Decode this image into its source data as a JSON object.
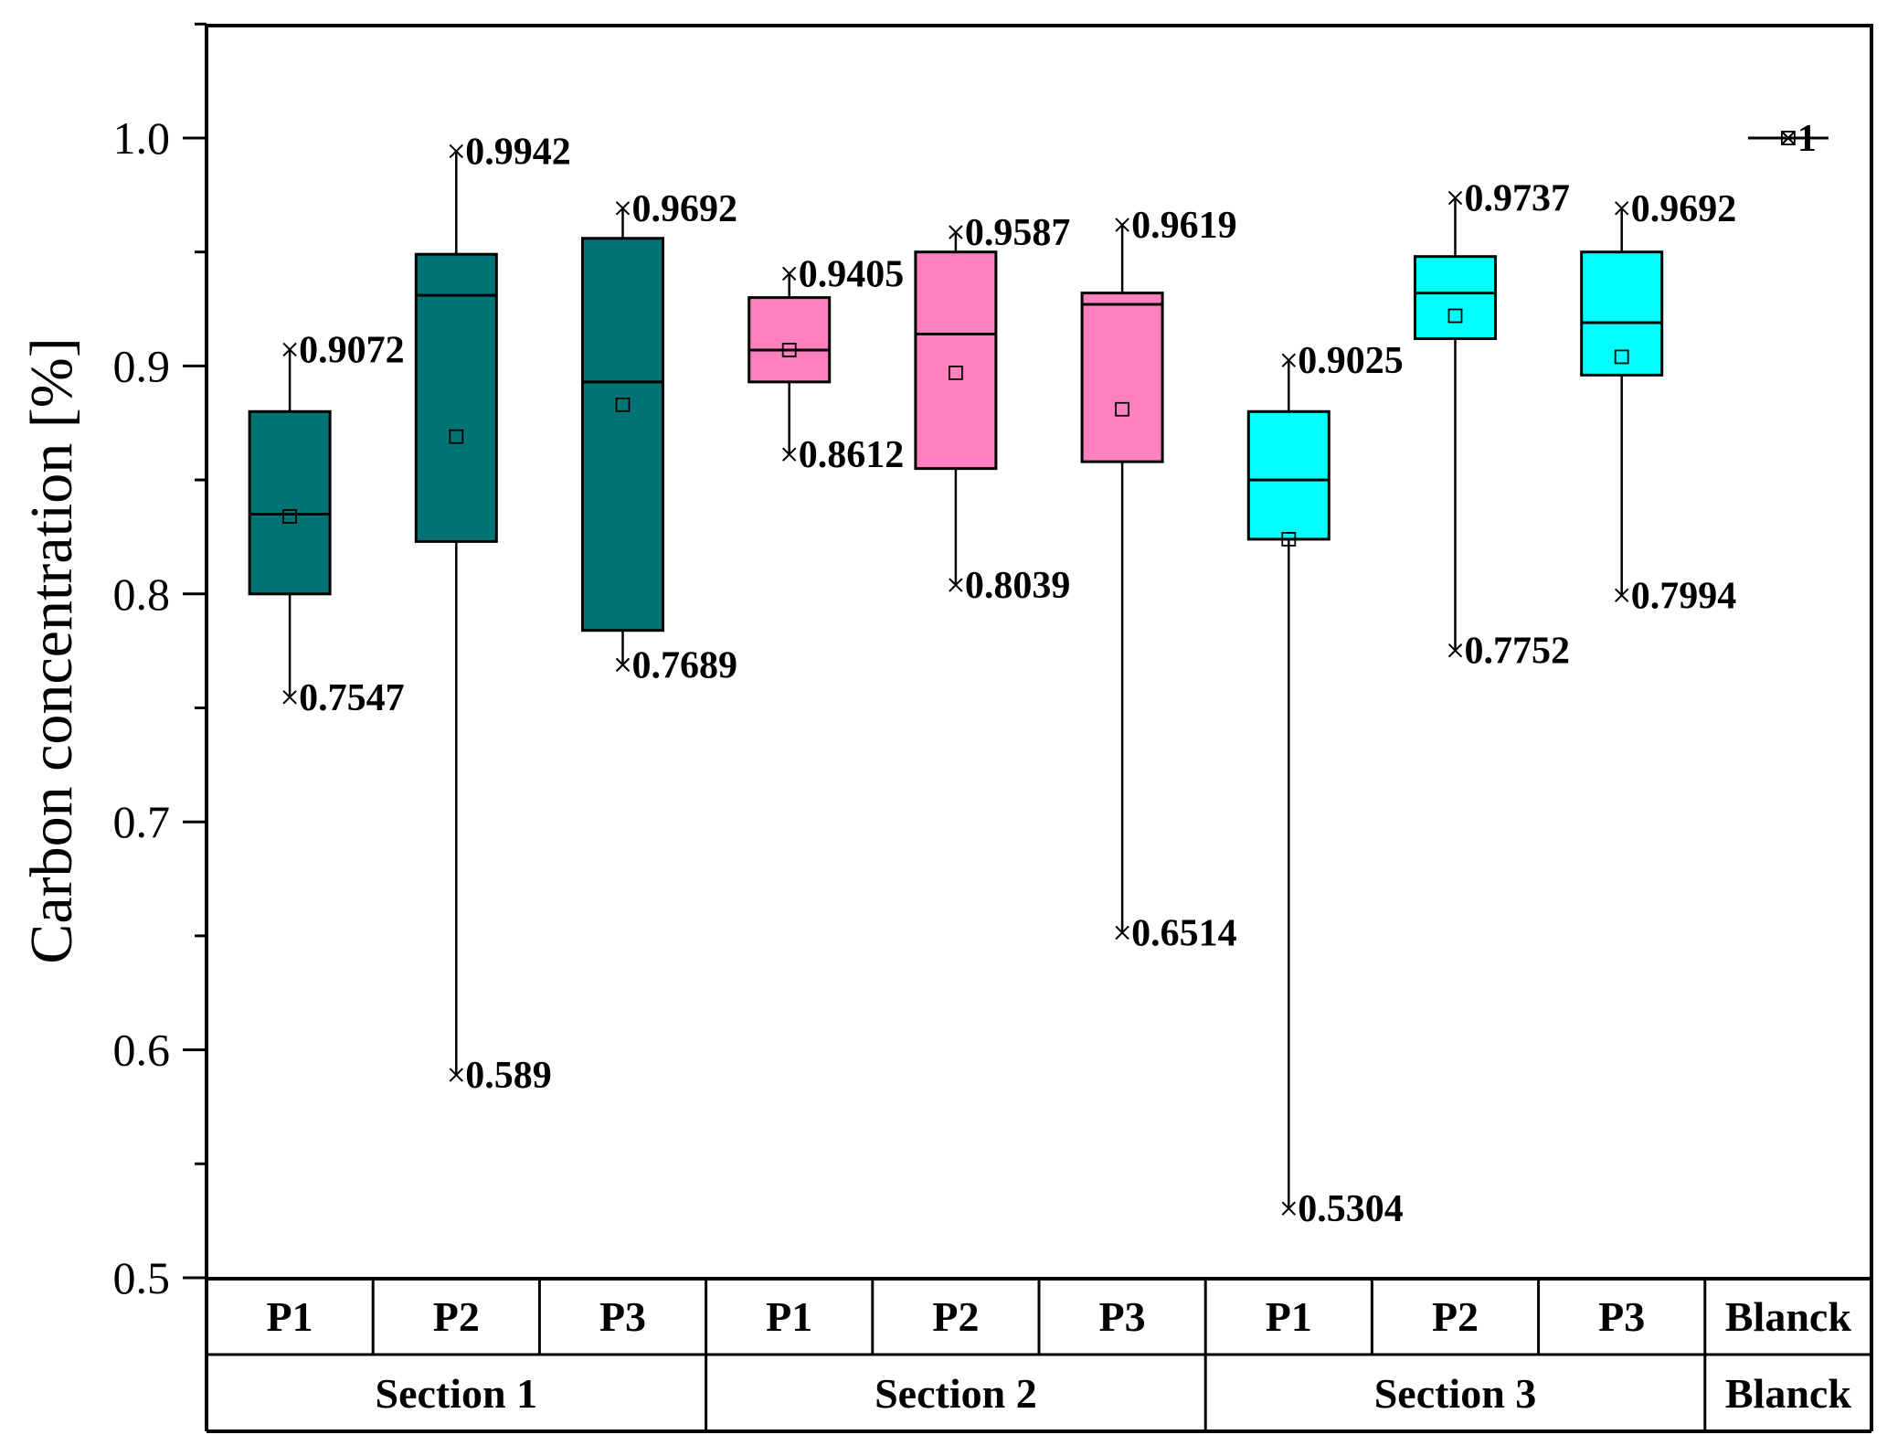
{
  "chart_data": {
    "type": "box",
    "ylabel": "Carbon concentration [%]",
    "ylim": [
      0.5,
      1.05
    ],
    "yticks": [
      "0.5",
      "0.6",
      "0.7",
      "0.8",
      "0.9",
      "1.0"
    ],
    "grid": false,
    "colors": {
      "Section 1": "#007474",
      "Section 2": "#ff80bf",
      "Section 3": "#00ffff",
      "Blanck": "#ffffff"
    },
    "boxes": [
      {
        "section": "Section 1",
        "position": "P1",
        "min": 0.7547,
        "q1": 0.8,
        "median": 0.835,
        "q3": 0.88,
        "max": 0.9072,
        "mean": 0.834,
        "min_label": "0.7547",
        "max_label": "0.9072"
      },
      {
        "section": "Section 1",
        "position": "P2",
        "min": 0.589,
        "q1": 0.823,
        "median": 0.931,
        "q3": 0.949,
        "max": 0.9942,
        "mean": 0.869,
        "min_label": "0.589",
        "max_label": "0.9942"
      },
      {
        "section": "Section 1",
        "position": "P3",
        "min": 0.7689,
        "q1": 0.784,
        "median": 0.893,
        "q3": 0.956,
        "max": 0.9692,
        "mean": 0.883,
        "min_label": "0.7689",
        "max_label": "0.9692"
      },
      {
        "section": "Section 2",
        "position": "P1",
        "min": 0.8612,
        "q1": 0.893,
        "median": 0.907,
        "q3": 0.93,
        "max": 0.9405,
        "mean": 0.907,
        "min_label": "0.8612",
        "max_label": "0.9405"
      },
      {
        "section": "Section 2",
        "position": "P2",
        "min": 0.8039,
        "q1": 0.855,
        "median": 0.914,
        "q3": 0.95,
        "max": 0.9587,
        "mean": 0.897,
        "min_label": "0.8039",
        "max_label": "0.9587"
      },
      {
        "section": "Section 2",
        "position": "P3",
        "min": 0.6514,
        "q1": 0.858,
        "median": 0.927,
        "q3": 0.932,
        "max": 0.9619,
        "mean": 0.881,
        "min_label": "0.6514",
        "max_label": "0.9619"
      },
      {
        "section": "Section 3",
        "position": "P1",
        "min": 0.5304,
        "q1": 0.824,
        "median": 0.85,
        "q3": 0.88,
        "max": 0.9025,
        "mean": 0.824,
        "min_label": "0.5304",
        "max_label": "0.9025"
      },
      {
        "section": "Section 3",
        "position": "P2",
        "min": 0.7752,
        "q1": 0.912,
        "median": 0.932,
        "q3": 0.948,
        "max": 0.9737,
        "mean": 0.922,
        "min_label": "0.7752",
        "max_label": "0.9737"
      },
      {
        "section": "Section 3",
        "position": "P3",
        "min": 0.7994,
        "q1": 0.896,
        "median": 0.919,
        "q3": 0.95,
        "max": 0.9692,
        "mean": 0.904,
        "min_label": "0.7994",
        "max_label": "0.9692"
      },
      {
        "section": "Blanck",
        "position": "Blanck",
        "min": 1,
        "q1": 1,
        "median": 1,
        "q3": 1,
        "max": 1,
        "mean": 1,
        "min_label": "",
        "max_label": "1"
      }
    ],
    "x_row1": [
      "P1",
      "P2",
      "P3",
      "P1",
      "P2",
      "P3",
      "P1",
      "P2",
      "P3",
      "Blanck"
    ],
    "x_row2": [
      {
        "label": "Section 1",
        "span": 3
      },
      {
        "label": "Section 2",
        "span": 3
      },
      {
        "label": "Section 3",
        "span": 3
      },
      {
        "label": "Blanck",
        "span": 1
      }
    ]
  }
}
